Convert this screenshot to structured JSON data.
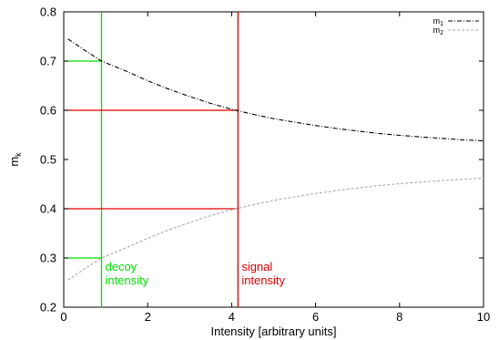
{
  "chart_data": {
    "type": "line",
    "xlabel": "Intensity [arbitrary units]",
    "ylabel": "m",
    "ylabel_sub": "k",
    "xlim": [
      0,
      10
    ],
    "ylim": [
      0.2,
      0.8
    ],
    "x_ticks": [
      0,
      2,
      4,
      6,
      8,
      10
    ],
    "y_ticks": [
      0.2,
      0.3,
      0.4,
      0.5,
      0.6,
      0.7,
      0.8
    ],
    "grid": false,
    "legend_position": "top-right",
    "series": [
      {
        "name": "m",
        "name_sub": "1",
        "style": "dash-dot",
        "color": "#000000",
        "x": [
          0.1,
          0.5,
          0.9,
          1.5,
          2,
          2.5,
          3,
          3.5,
          4,
          4.5,
          5,
          5.5,
          6,
          6.5,
          7,
          7.5,
          8,
          8.5,
          9,
          9.5,
          10
        ],
        "y": [
          0.745,
          0.722,
          0.7,
          0.679,
          0.66,
          0.643,
          0.628,
          0.614,
          0.602,
          0.592,
          0.583,
          0.576,
          0.569,
          0.563,
          0.558,
          0.553,
          0.549,
          0.546,
          0.543,
          0.54,
          0.538
        ]
      },
      {
        "name": "m",
        "name_sub": "2",
        "style": "dashed",
        "color": "#aaaaaa",
        "x": [
          0.1,
          0.5,
          0.9,
          1.5,
          2,
          2.5,
          3,
          3.5,
          4,
          4.5,
          5,
          5.5,
          6,
          6.5,
          7,
          7.5,
          8,
          8.5,
          9,
          9.5,
          10
        ],
        "y": [
          0.255,
          0.278,
          0.3,
          0.321,
          0.34,
          0.357,
          0.372,
          0.386,
          0.398,
          0.408,
          0.417,
          0.424,
          0.431,
          0.437,
          0.442,
          0.447,
          0.451,
          0.454,
          0.457,
          0.46,
          0.462
        ]
      }
    ],
    "markers": [
      {
        "label_lines": [
          "decoy",
          "intensity"
        ],
        "color": "#00dd00",
        "x": 0.9,
        "y_levels": [
          0.7,
          0.3
        ]
      },
      {
        "label_lines": [
          "signal",
          "intensity"
        ],
        "color": "#dd0000",
        "x": 4.15,
        "y_levels": [
          0.6,
          0.4
        ]
      }
    ]
  }
}
